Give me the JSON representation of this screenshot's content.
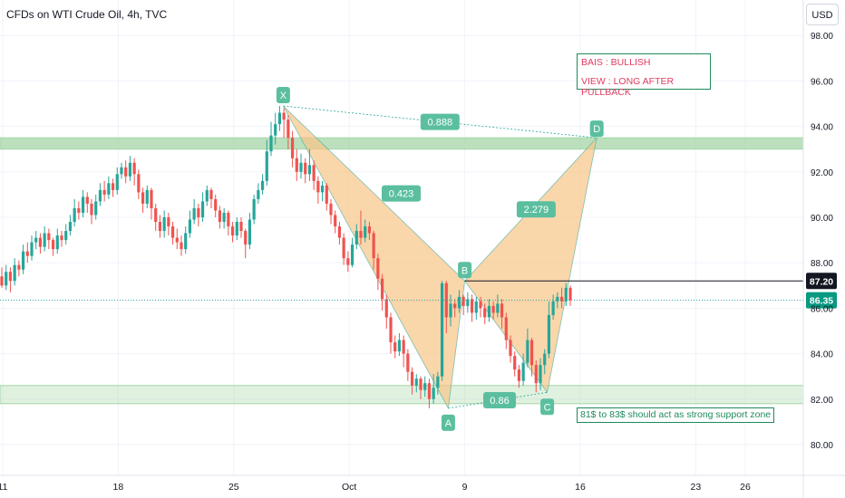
{
  "header": {
    "title": "CFDs on WTI Crude Oil, 4h, TVC"
  },
  "currency_button": "USD",
  "annotations": {
    "bias_line1": "BAIS : BULLISH",
    "bias_line2": "VIEW : LONG AFTER PULLBACK",
    "support_note": "81$ to 83$ should act as strong support zone"
  },
  "colors": {
    "bull": "#26a69a",
    "bear": "#ef5350",
    "pattern_fill": "#f8c587",
    "zone_fill": "#a5d6a7",
    "label_bg": "#5bbf9f",
    "support_line": "#26a69a",
    "resistance_line": "#131722"
  },
  "chart_data": {
    "type": "candlestick",
    "symbol": "CFDs on WTI Crude Oil",
    "timeframe": "4h",
    "source": "TVC",
    "currency": "USD",
    "x_axis": {
      "type": "date",
      "min": "2023-09-10",
      "max": "2023-10-28",
      "tick_labels": [
        {
          "date": "2023-09-11",
          "label": "11"
        },
        {
          "date": "2023-09-18",
          "label": "18"
        },
        {
          "date": "2023-09-25",
          "label": "25"
        },
        {
          "date": "2023-10-02",
          "label": "Oct"
        },
        {
          "date": "2023-10-09",
          "label": "9"
        },
        {
          "date": "2023-10-16",
          "label": "16"
        },
        {
          "date": "2023-10-23",
          "label": "23"
        },
        {
          "date": "2023-10-26",
          "label": "26"
        }
      ]
    },
    "y_axis": {
      "min": 79,
      "max": 98.6,
      "ticks": [
        98,
        96,
        94,
        92,
        90,
        88,
        86,
        84,
        82,
        80
      ],
      "tick_labels": [
        "98.00",
        "96.00",
        "94.00",
        "92.00",
        "90.00",
        "88.00",
        "86.00",
        "84.00",
        "82.00",
        "80.00"
      ]
    },
    "grid": true,
    "price_labels": [
      {
        "value": 87.2,
        "label": "87.20",
        "style": "dark"
      },
      {
        "value": 86.35,
        "label": "86.35",
        "style": "green"
      }
    ],
    "last_price": 86.35,
    "resistance_line": {
      "value": 87.2,
      "from": "2023-10-09"
    },
    "zones": [
      {
        "name": "resistance",
        "low": 93.0,
        "high": 93.5
      },
      {
        "name": "support",
        "low": 81.8,
        "high": 82.6
      }
    ],
    "harmonic_pattern": {
      "points": [
        {
          "label": "X",
          "date": "2023-09-28",
          "value": 94.9
        },
        {
          "label": "A",
          "date": "2023-10-08",
          "value": 81.6
        },
        {
          "label": "B",
          "date": "2023-10-09",
          "value": 87.2
        },
        {
          "label": "C",
          "date": "2023-10-14",
          "value": 82.3
        },
        {
          "label": "D",
          "date": "2023-10-17",
          "value": 93.5
        }
      ],
      "ratios": [
        {
          "label": "0.888",
          "between": "XD"
        },
        {
          "label": "0.423",
          "between": "XB"
        },
        {
          "label": "2.279",
          "between": "BD"
        },
        {
          "label": "0.86",
          "between": "AC"
        }
      ]
    },
    "candles": [
      [
        87.4,
        87.0,
        87.8,
        86.9
      ],
      [
        87.0,
        87.6,
        87.9,
        86.8
      ],
      [
        87.6,
        87.2,
        87.8,
        86.7
      ],
      [
        87.2,
        87.9,
        88.2,
        87.0
      ],
      [
        87.9,
        87.7,
        88.1,
        87.4
      ],
      [
        87.7,
        88.5,
        88.8,
        87.5
      ],
      [
        88.5,
        88.3,
        88.9,
        88.0
      ],
      [
        88.3,
        88.9,
        89.2,
        88.1
      ],
      [
        88.9,
        89.1,
        89.4,
        88.6
      ],
      [
        89.1,
        88.7,
        89.3,
        88.4
      ],
      [
        88.7,
        89.3,
        89.6,
        88.5
      ],
      [
        89.3,
        89.0,
        89.5,
        88.6
      ],
      [
        89.0,
        88.6,
        89.1,
        88.3
      ],
      [
        88.6,
        89.2,
        89.5,
        88.4
      ],
      [
        89.2,
        89.0,
        89.4,
        88.7
      ],
      [
        89.0,
        89.4,
        89.7,
        88.8
      ],
      [
        89.4,
        89.8,
        90.1,
        89.2
      ],
      [
        89.8,
        90.4,
        90.8,
        89.6
      ],
      [
        90.4,
        90.2,
        90.7,
        89.9
      ],
      [
        90.2,
        90.9,
        91.2,
        90.0
      ],
      [
        90.9,
        90.6,
        91.1,
        90.2
      ],
      [
        90.6,
        90.1,
        90.8,
        89.7
      ],
      [
        90.1,
        90.7,
        91.0,
        89.9
      ],
      [
        90.7,
        91.2,
        91.5,
        90.5
      ],
      [
        91.2,
        91.0,
        91.6,
        90.7
      ],
      [
        91.0,
        91.5,
        91.8,
        90.8
      ],
      [
        91.5,
        91.2,
        91.7,
        90.9
      ],
      [
        91.2,
        91.9,
        92.2,
        91.0
      ],
      [
        91.9,
        92.2,
        92.4,
        91.7
      ],
      [
        92.2,
        91.8,
        92.5,
        91.5
      ],
      [
        91.8,
        92.4,
        92.7,
        91.6
      ],
      [
        92.4,
        91.9,
        92.6,
        91.4
      ],
      [
        91.9,
        91.1,
        92.1,
        90.8
      ],
      [
        91.1,
        90.6,
        91.3,
        90.2
      ],
      [
        90.6,
        91.2,
        91.4,
        90.4
      ],
      [
        91.2,
        90.4,
        91.3,
        89.9
      ],
      [
        90.4,
        89.8,
        90.6,
        89.4
      ],
      [
        89.8,
        89.4,
        90.1,
        89.1
      ],
      [
        89.4,
        90.0,
        90.3,
        89.1
      ],
      [
        90.0,
        89.6,
        90.2,
        89.2
      ],
      [
        89.6,
        89.1,
        89.8,
        88.8
      ],
      [
        89.1,
        88.9,
        89.5,
        88.6
      ],
      [
        88.9,
        88.6,
        89.2,
        88.3
      ],
      [
        88.6,
        89.3,
        89.6,
        88.4
      ],
      [
        89.3,
        89.9,
        90.3,
        89.1
      ],
      [
        89.9,
        90.4,
        90.8,
        89.7
      ],
      [
        90.4,
        90.0,
        90.6,
        89.6
      ],
      [
        90.0,
        90.7,
        91.1,
        89.8
      ],
      [
        90.7,
        91.2,
        91.4,
        90.5
      ],
      [
        91.2,
        90.8,
        91.3,
        90.4
      ],
      [
        90.8,
        90.3,
        91.0,
        90.0
      ],
      [
        90.3,
        89.8,
        90.5,
        89.5
      ],
      [
        89.8,
        90.2,
        90.4,
        89.5
      ],
      [
        90.2,
        89.6,
        90.3,
        89.2
      ],
      [
        89.6,
        89.2,
        89.8,
        88.9
      ],
      [
        89.2,
        89.8,
        90.0,
        89.0
      ],
      [
        89.8,
        89.4,
        90.0,
        89.1
      ],
      [
        89.4,
        88.8,
        89.5,
        88.2
      ],
      [
        88.8,
        89.9,
        90.2,
        88.6
      ],
      [
        89.9,
        90.8,
        91.0,
        89.7
      ],
      [
        90.8,
        91.2,
        91.5,
        90.6
      ],
      [
        91.2,
        91.6,
        91.9,
        91.0
      ],
      [
        91.6,
        92.9,
        93.4,
        91.4
      ],
      [
        92.9,
        93.6,
        94.2,
        92.7
      ],
      [
        93.6,
        94.1,
        94.6,
        93.2
      ],
      [
        94.1,
        94.6,
        94.9,
        93.8
      ],
      [
        94.6,
        94.3,
        94.8,
        93.5
      ],
      [
        94.3,
        93.5,
        94.5,
        93.0
      ],
      [
        93.5,
        92.6,
        93.8,
        92.2
      ],
      [
        92.6,
        92.0,
        93.0,
        91.6
      ],
      [
        92.0,
        92.4,
        92.8,
        91.7
      ],
      [
        92.4,
        91.9,
        92.6,
        91.5
      ],
      [
        91.9,
        92.3,
        93.0,
        91.6
      ],
      [
        92.3,
        91.6,
        92.5,
        91.2
      ],
      [
        91.6,
        91.1,
        91.8,
        90.6
      ],
      [
        91.1,
        91.4,
        91.6,
        90.7
      ],
      [
        91.4,
        90.6,
        91.5,
        90.3
      ],
      [
        90.6,
        90.1,
        90.8,
        89.7
      ],
      [
        90.1,
        89.6,
        90.3,
        89.3
      ],
      [
        89.6,
        89.1,
        89.8,
        88.8
      ],
      [
        89.1,
        88.2,
        89.3,
        87.9
      ],
      [
        88.2,
        87.9,
        88.5,
        87.6
      ],
      [
        87.9,
        88.8,
        89.1,
        87.8
      ],
      [
        88.8,
        89.4,
        89.7,
        88.6
      ],
      [
        89.4,
        89.1,
        90.3,
        88.8
      ],
      [
        89.1,
        89.6,
        89.9,
        88.9
      ],
      [
        89.6,
        89.3,
        89.8,
        89.0
      ],
      [
        89.3,
        88.2,
        89.4,
        87.7
      ],
      [
        88.2,
        87.3,
        88.4,
        86.8
      ],
      [
        87.3,
        86.4,
        87.5,
        85.9
      ],
      [
        86.4,
        85.6,
        86.6,
        85.1
      ],
      [
        85.6,
        84.5,
        85.8,
        84.0
      ],
      [
        84.5,
        84.1,
        84.8,
        83.8
      ],
      [
        84.1,
        84.6,
        84.9,
        83.9
      ],
      [
        84.6,
        84.0,
        84.8,
        83.4
      ],
      [
        84.0,
        83.2,
        84.2,
        82.8
      ],
      [
        83.2,
        82.6,
        83.4,
        82.2
      ],
      [
        82.6,
        82.9,
        83.1,
        82.3
      ],
      [
        82.9,
        82.4,
        83.0,
        82.0
      ],
      [
        82.4,
        82.7,
        83.0,
        82.1
      ],
      [
        82.7,
        82.0,
        82.9,
        81.6
      ],
      [
        82.0,
        82.5,
        83.1,
        81.8
      ],
      [
        82.5,
        83.0,
        83.2,
        82.2
      ],
      [
        83.0,
        87.1,
        87.2,
        82.8
      ],
      [
        87.1,
        85.6,
        87.2,
        84.9
      ],
      [
        85.6,
        86.2,
        86.6,
        85.2
      ],
      [
        86.2,
        86.0,
        86.4,
        85.6
      ],
      [
        86.0,
        86.5,
        86.8,
        85.8
      ],
      [
        86.5,
        86.1,
        86.6,
        85.7
      ],
      [
        86.1,
        86.4,
        86.7,
        85.8
      ],
      [
        86.4,
        85.8,
        86.6,
        85.4
      ],
      [
        85.8,
        86.3,
        86.5,
        85.5
      ],
      [
        86.3,
        86.0,
        86.5,
        85.6
      ],
      [
        86.0,
        85.6,
        86.2,
        85.3
      ],
      [
        85.6,
        86.1,
        86.4,
        85.4
      ],
      [
        86.1,
        85.8,
        86.3,
        85.5
      ],
      [
        85.8,
        86.2,
        86.6,
        85.6
      ],
      [
        86.2,
        85.6,
        86.4,
        85.1
      ],
      [
        85.6,
        84.6,
        85.8,
        84.2
      ],
      [
        84.6,
        83.9,
        84.8,
        83.6
      ],
      [
        83.9,
        83.3,
        84.1,
        83.0
      ],
      [
        83.3,
        82.8,
        83.5,
        82.5
      ],
      [
        82.8,
        83.6,
        84.0,
        82.6
      ],
      [
        83.6,
        84.6,
        85.1,
        83.4
      ],
      [
        84.6,
        83.5,
        84.7,
        83.0
      ],
      [
        83.5,
        82.7,
        83.7,
        82.3
      ],
      [
        82.7,
        83.5,
        83.8,
        82.4
      ],
      [
        83.5,
        84.0,
        84.2,
        83.1
      ],
      [
        84.0,
        85.7,
        86.3,
        83.8
      ],
      [
        85.7,
        86.3,
        86.6,
        85.5
      ],
      [
        86.3,
        86.5,
        86.7,
        86.0
      ],
      [
        86.5,
        86.3,
        86.9,
        86.0
      ],
      [
        86.3,
        86.9,
        87.1,
        86.1
      ],
      [
        86.9,
        86.35,
        87.0,
        86.1
      ]
    ]
  }
}
